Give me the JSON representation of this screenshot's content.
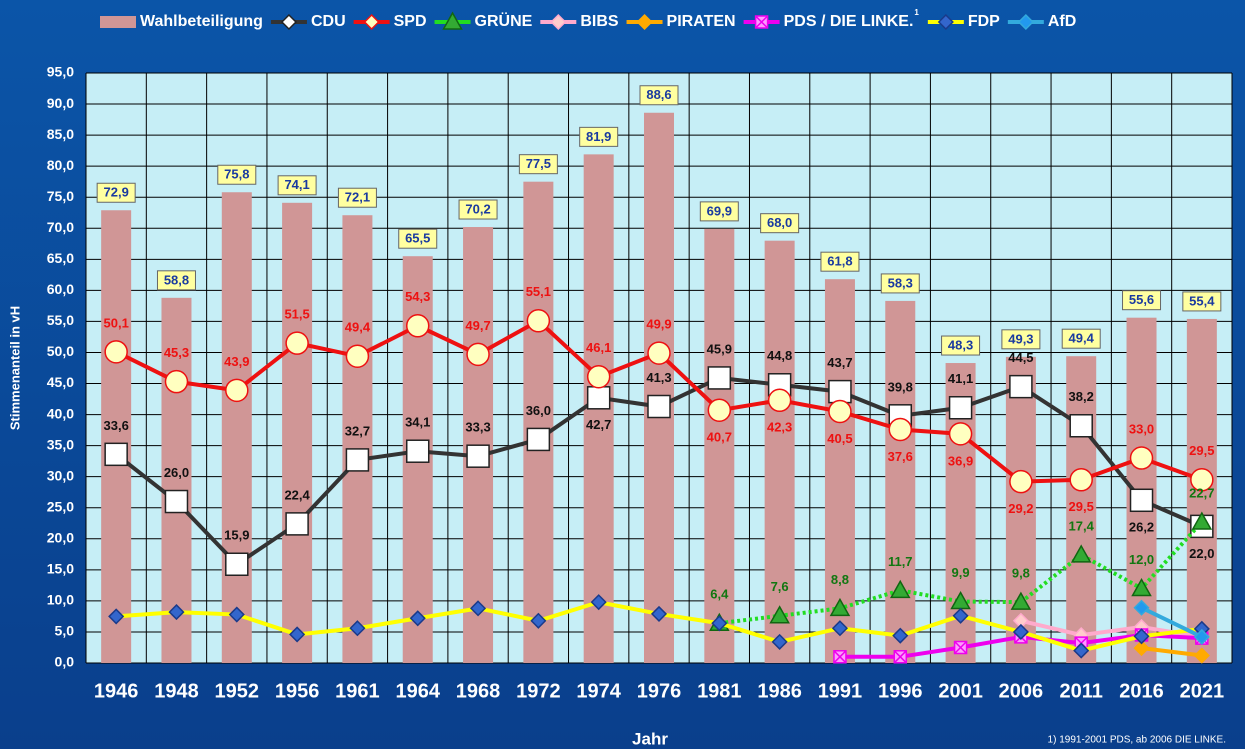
{
  "chart_data": {
    "type": "bar_line",
    "y_label": "Stimmenanteil in vH",
    "x_label": "Jahr",
    "footnote": "1) 1991-2001 PDS, ab 2006 DIE LINKE.",
    "categories": [
      "1946",
      "1948",
      "1952",
      "1956",
      "1961",
      "1964",
      "1968",
      "1972",
      "1974",
      "1976",
      "1981",
      "1986",
      "1991",
      "1996",
      "2001",
      "2006",
      "2011",
      "2016",
      "2021"
    ],
    "ylim": [
      0,
      95
    ],
    "yticks": [
      {
        "value": 0,
        "label": "0,0"
      },
      {
        "value": 5,
        "label": "5,0"
      },
      {
        "value": 10,
        "label": "10,0"
      },
      {
        "value": 15,
        "label": "15,0"
      },
      {
        "value": 20,
        "label": "20,0"
      },
      {
        "value": 25,
        "label": "25,0"
      },
      {
        "value": 30,
        "label": "30,0"
      },
      {
        "value": 35,
        "label": "35,0"
      },
      {
        "value": 40,
        "label": "40,0"
      },
      {
        "value": 45,
        "label": "45,0"
      },
      {
        "value": 50,
        "label": "50,0"
      },
      {
        "value": 55,
        "label": "55,0"
      },
      {
        "value": 60,
        "label": "60,0"
      },
      {
        "value": 65,
        "label": "65,0"
      },
      {
        "value": 70,
        "label": "70,0"
      },
      {
        "value": 75,
        "label": "75,0"
      },
      {
        "value": 80,
        "label": "80,0"
      },
      {
        "value": 85,
        "label": "85,0"
      },
      {
        "value": 90,
        "label": "90,0"
      },
      {
        "value": 95,
        "label": "95,0"
      }
    ],
    "grid": true,
    "series": [
      {
        "name": "Wahlbeteiligung",
        "kind": "bar",
        "color": "#d09696",
        "values": [
          72.9,
          58.8,
          75.8,
          74.1,
          72.1,
          65.5,
          70.2,
          77.5,
          81.9,
          88.6,
          69.9,
          68.0,
          61.8,
          58.3,
          48.3,
          49.3,
          49.4,
          55.6,
          55.4
        ],
        "value_labels": [
          "72,9",
          "58,8",
          "75,8",
          "74,1",
          "72,1",
          "65,5",
          "70,2",
          "77,5",
          "81,9",
          "88,6",
          "69,9",
          "68,0",
          "61,8",
          "58,3",
          "48,3",
          "49,3",
          "49,4",
          "55,6",
          "55,4"
        ]
      },
      {
        "name": "CDU",
        "kind": "line",
        "color": "#333333",
        "marker": "square",
        "marker_fill": "#ffffff",
        "values": [
          33.6,
          26.0,
          15.9,
          22.4,
          32.7,
          34.1,
          33.3,
          36.0,
          42.7,
          41.3,
          45.9,
          44.8,
          43.7,
          39.8,
          41.1,
          44.5,
          38.2,
          26.2,
          22.0
        ],
        "value_labels": [
          "33,6",
          "26,0",
          "15,9",
          "22,4",
          "32,7",
          "34,1",
          "33,3",
          "36,0",
          "42,7",
          "41,3",
          "45,9",
          "44,8",
          "43,7",
          "39,8",
          "41,1",
          "44,5",
          "38,2",
          "26,2",
          "22,0"
        ]
      },
      {
        "name": "SPD",
        "kind": "line",
        "color": "#ee1111",
        "marker": "circle",
        "marker_fill": "#ffffc0",
        "values": [
          50.1,
          45.3,
          43.9,
          51.5,
          49.4,
          54.3,
          49.7,
          55.1,
          46.1,
          49.9,
          40.7,
          42.3,
          40.5,
          37.6,
          36.9,
          29.2,
          29.5,
          33.0,
          29.5
        ],
        "value_labels": [
          "50,1",
          "45,3",
          "43,9",
          "51,5",
          "49,4",
          "54,3",
          "49,7",
          "55,1",
          "46,1",
          "49,9",
          "40,7",
          "42,3",
          "40,5",
          "37,6",
          "36,9",
          "29,2",
          "29,5",
          "33,0",
          "29,5"
        ]
      },
      {
        "name": "GRÜNE",
        "kind": "line",
        "color": "#22dd22",
        "marker": "triangle",
        "marker_fill": "#33aa33",
        "line_style": "dotted",
        "values": [
          null,
          null,
          null,
          null,
          null,
          null,
          null,
          null,
          null,
          null,
          6.4,
          7.6,
          8.8,
          11.7,
          9.9,
          9.8,
          17.4,
          12.0,
          22.7
        ],
        "value_labels": [
          null,
          null,
          null,
          null,
          null,
          null,
          null,
          null,
          null,
          null,
          "6,4",
          "7,6",
          "8,8",
          "11,7",
          "9,9",
          "9,8",
          "17,4",
          "12,0",
          "22,7"
        ]
      },
      {
        "name": "BIBS",
        "kind": "line",
        "color": "#ffaacc",
        "marker": "diamond",
        "marker_fill": "#ffcccc",
        "values": [
          null,
          null,
          null,
          null,
          null,
          null,
          null,
          null,
          null,
          null,
          null,
          null,
          null,
          null,
          null,
          6.8,
          4.5,
          5.8,
          4.2
        ]
      },
      {
        "name": "PIRATEN",
        "kind": "line",
        "color": "#ffaa00",
        "marker": "diamond",
        "marker_fill": "#ffaa00",
        "values": [
          null,
          null,
          null,
          null,
          null,
          null,
          null,
          null,
          null,
          null,
          null,
          null,
          null,
          null,
          null,
          null,
          null,
          2.4,
          1.2
        ]
      },
      {
        "name": "PDS / DIE LINKE.",
        "kind": "line",
        "color": "#ee00ee",
        "marker": "xsquare",
        "marker_fill": "#ff99ff",
        "legend_mark": "1",
        "values": [
          null,
          null,
          null,
          null,
          null,
          null,
          null,
          null,
          null,
          null,
          null,
          null,
          1.0,
          1.0,
          2.5,
          4.2,
          3.2,
          4.5,
          4.0
        ]
      },
      {
        "name": "FDP",
        "kind": "line",
        "color": "#ffff00",
        "marker": "diamond",
        "marker_fill": "#3366cc",
        "values": [
          7.5,
          8.2,
          7.8,
          4.6,
          5.6,
          7.2,
          8.8,
          6.8,
          9.8,
          7.9,
          6.4,
          3.4,
          5.6,
          4.4,
          7.6,
          5.0,
          2.0,
          4.3,
          5.5
        ]
      },
      {
        "name": "AfD",
        "kind": "line",
        "color": "#33aadd",
        "marker": "diamond",
        "marker_fill": "#2299ee",
        "values": [
          null,
          null,
          null,
          null,
          null,
          null,
          null,
          null,
          null,
          null,
          null,
          null,
          null,
          null,
          null,
          null,
          null,
          8.9,
          4.2
        ]
      }
    ]
  }
}
